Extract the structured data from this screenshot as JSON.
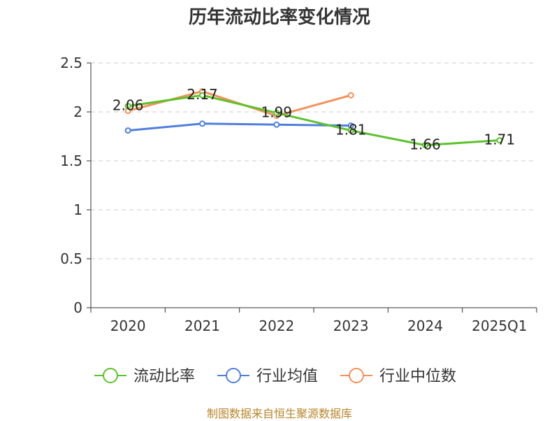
{
  "chart_data": {
    "type": "line",
    "title": "历年流动比率变化情况",
    "categories": [
      "2020",
      "2021",
      "2022",
      "2023",
      "2024",
      "2025Q1"
    ],
    "ylim": [
      0,
      2.5
    ],
    "yticks": [
      "0",
      "0.5",
      "1",
      "1.5",
      "2",
      "2.5"
    ],
    "grid": true,
    "legend_position": "bottom",
    "series": [
      {
        "name": "流动比率",
        "color": "#5cc22c",
        "values": [
          2.06,
          2.17,
          1.99,
          1.81,
          1.66,
          1.71
        ],
        "labels": [
          "2.06",
          "2.17",
          "1.99",
          "1.81",
          "1.66",
          "1.71"
        ]
      },
      {
        "name": "行业均值",
        "color": "#4f7fdd",
        "values": [
          1.81,
          1.88,
          1.87,
          1.86,
          null,
          null
        ]
      },
      {
        "name": "行业中位数",
        "color": "#f4915a",
        "values": [
          2.01,
          2.21,
          1.96,
          2.17,
          null,
          null
        ]
      }
    ]
  },
  "source": "制图数据来自恒生聚源数据库"
}
